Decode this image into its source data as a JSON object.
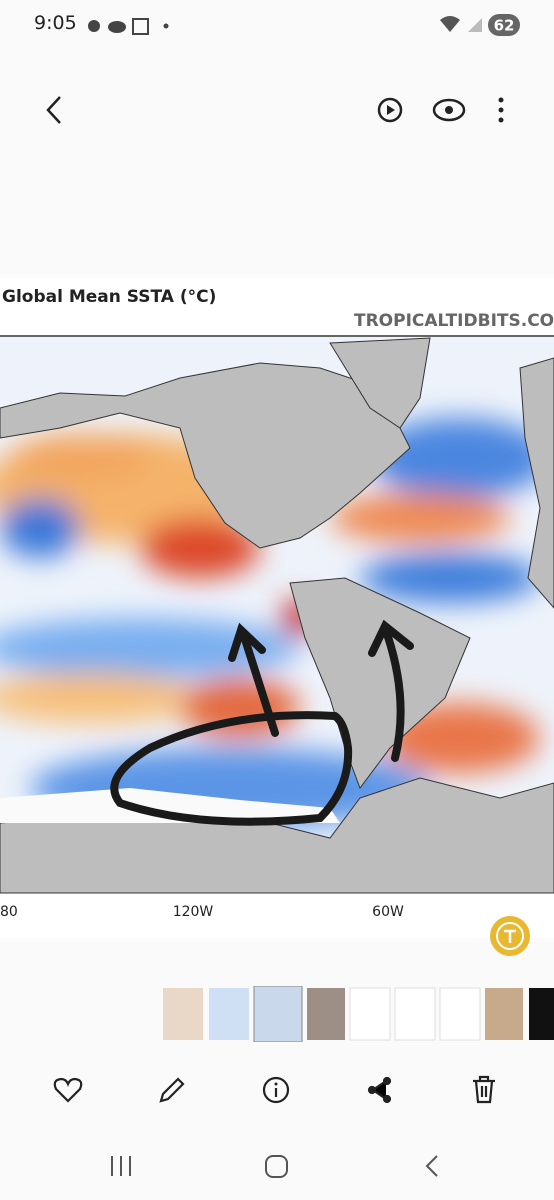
{
  "status_bar": {
    "time": "9:05",
    "battery": "62"
  },
  "image": {
    "title": "Global Mean SSTA (°C)",
    "watermark": "TROPICALTIDBITS.CO",
    "x_labels": [
      "80",
      "120W",
      "60W"
    ]
  }
}
